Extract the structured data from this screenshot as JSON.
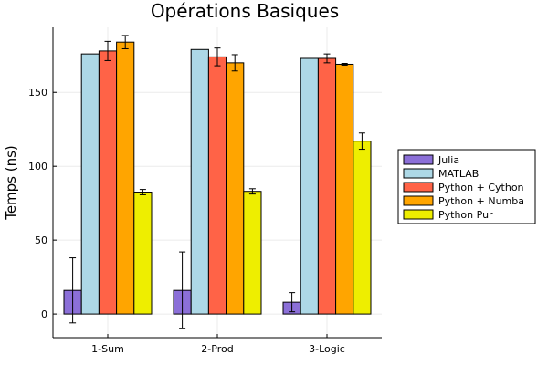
{
  "chart_data": {
    "type": "bar",
    "title": "Opérations Basiques",
    "xlabel": "",
    "ylabel": "Temps (ns)",
    "ylim": [
      -16,
      194
    ],
    "yticks": [
      0,
      50,
      100,
      150
    ],
    "grid": true,
    "legend_position": "right",
    "categories": [
      "1-Sum",
      "2-Prod",
      "3-Logic"
    ],
    "series": [
      {
        "name": "Julia",
        "color": "#8b6fd8",
        "values": [
          16,
          16,
          8
        ],
        "errors": [
          22,
          26,
          6.5
        ]
      },
      {
        "name": "MATLAB",
        "color": "#add8e6",
        "values": [
          176,
          179,
          173
        ],
        "errors": [
          0,
          0,
          0
        ]
      },
      {
        "name": "Python + Cython",
        "color": "#ff6347",
        "values": [
          178,
          174,
          173
        ],
        "errors": [
          6.5,
          6,
          3
        ]
      },
      {
        "name": "Python + Numba",
        "color": "#ffa500",
        "values": [
          184,
          170,
          169
        ],
        "errors": [
          4.5,
          5.5,
          0.6
        ]
      },
      {
        "name": "Python Pur",
        "color": "#eeee00",
        "values": [
          82.5,
          83,
          117
        ],
        "errors": [
          1.8,
          1.8,
          5.5
        ]
      }
    ]
  }
}
